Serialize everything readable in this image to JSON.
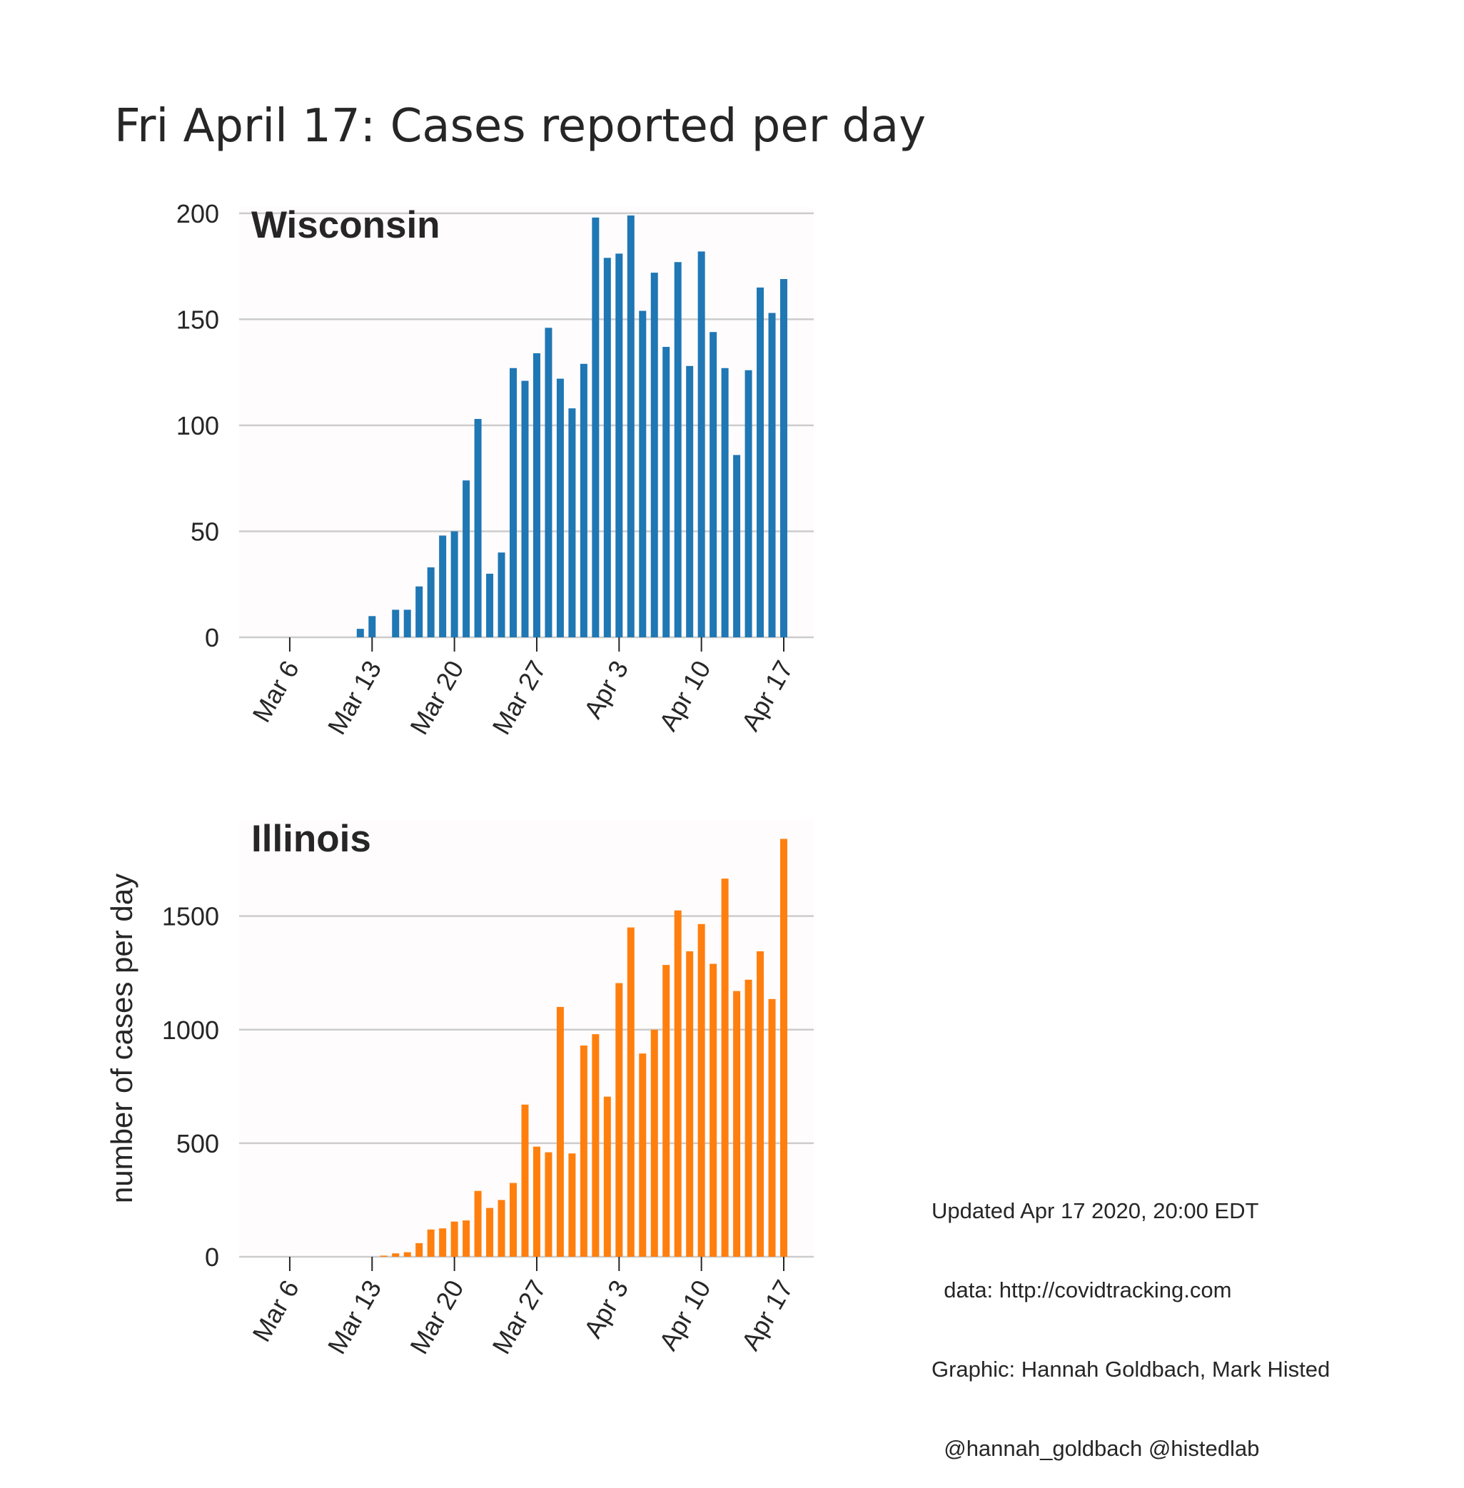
{
  "title": "Fri April 17: Cases reported per day",
  "ylabel": "number of cases per day",
  "credits": {
    "updated": "Updated Apr 17 2020, 20:00 EDT",
    "data": "  data: http://covidtracking.com",
    "graphic": "Graphic: Hannah Goldbach, Mark Histed",
    "handles": "  @hannah_goldbach @histedlab"
  },
  "colors": {
    "wisconsin": "#1f77b4",
    "illinois": "#ff7f0e",
    "panel_bg": "#fffcfd",
    "grid": "#cccccc",
    "text": "#262626"
  },
  "chart_data": [
    {
      "type": "bar",
      "title": "Wisconsin",
      "x_start": "Mar 3",
      "x": [
        "Mar 3",
        "Mar 4",
        "Mar 5",
        "Mar 6",
        "Mar 7",
        "Mar 8",
        "Mar 9",
        "Mar 10",
        "Mar 11",
        "Mar 12",
        "Mar 13",
        "Mar 14",
        "Mar 15",
        "Mar 16",
        "Mar 17",
        "Mar 18",
        "Mar 19",
        "Mar 20",
        "Mar 21",
        "Mar 22",
        "Mar 23",
        "Mar 24",
        "Mar 25",
        "Mar 26",
        "Mar 27",
        "Mar 28",
        "Mar 29",
        "Mar 30",
        "Mar 31",
        "Apr 1",
        "Apr 2",
        "Apr 3",
        "Apr 4",
        "Apr 5",
        "Apr 6",
        "Apr 7",
        "Apr 8",
        "Apr 9",
        "Apr 10",
        "Apr 11",
        "Apr 12",
        "Apr 13",
        "Apr 14",
        "Apr 15",
        "Apr 16",
        "Apr 17"
      ],
      "values": [
        0,
        0,
        0,
        0,
        0,
        0,
        0,
        0,
        0,
        4,
        10,
        0,
        13,
        13,
        24,
        33,
        48,
        50,
        74,
        103,
        30,
        40,
        127,
        121,
        134,
        146,
        122,
        108,
        129,
        198,
        179,
        181,
        199,
        154,
        172,
        137,
        177,
        128,
        182,
        144,
        127,
        86,
        126,
        165,
        153,
        169
      ],
      "xticks": [
        "Mar 6",
        "Mar 13",
        "Mar 20",
        "Mar 27",
        "Apr 3",
        "Apr 10",
        "Apr 17"
      ],
      "yticks": [
        0,
        50,
        100,
        150,
        200
      ],
      "ylim": [
        0,
        203
      ],
      "grid": true,
      "color": "#1f77b4"
    },
    {
      "type": "bar",
      "title": "Illinois",
      "x_start": "Mar 3",
      "x": [
        "Mar 3",
        "Mar 4",
        "Mar 5",
        "Mar 6",
        "Mar 7",
        "Mar 8",
        "Mar 9",
        "Mar 10",
        "Mar 11",
        "Mar 12",
        "Mar 13",
        "Mar 14",
        "Mar 15",
        "Mar 16",
        "Mar 17",
        "Mar 18",
        "Mar 19",
        "Mar 20",
        "Mar 21",
        "Mar 22",
        "Mar 23",
        "Mar 24",
        "Mar 25",
        "Mar 26",
        "Mar 27",
        "Mar 28",
        "Mar 29",
        "Mar 30",
        "Mar 31",
        "Apr 1",
        "Apr 2",
        "Apr 3",
        "Apr 4",
        "Apr 5",
        "Apr 6",
        "Apr 7",
        "Apr 8",
        "Apr 9",
        "Apr 10",
        "Apr 11",
        "Apr 12",
        "Apr 13",
        "Apr 14",
        "Apr 15",
        "Apr 16",
        "Apr 17"
      ],
      "values": [
        0,
        0,
        0,
        0,
        0,
        0,
        0,
        0,
        0,
        0,
        0,
        5,
        15,
        20,
        60,
        120,
        125,
        155,
        160,
        290,
        215,
        250,
        325,
        670,
        485,
        460,
        1100,
        455,
        930,
        980,
        705,
        1205,
        1450,
        895,
        1000,
        1285,
        1525,
        1345,
        1465,
        1290,
        1665,
        1170,
        1220,
        1345,
        1135,
        1840
      ],
      "xticks": [
        "Mar 6",
        "Mar 13",
        "Mar 20",
        "Mar 27",
        "Apr 3",
        "Apr 10",
        "Apr 17"
      ],
      "yticks": [
        0,
        500,
        1000,
        1500
      ],
      "ylim": [
        0,
        1920
      ],
      "grid": true,
      "color": "#ff7f0e"
    }
  ]
}
